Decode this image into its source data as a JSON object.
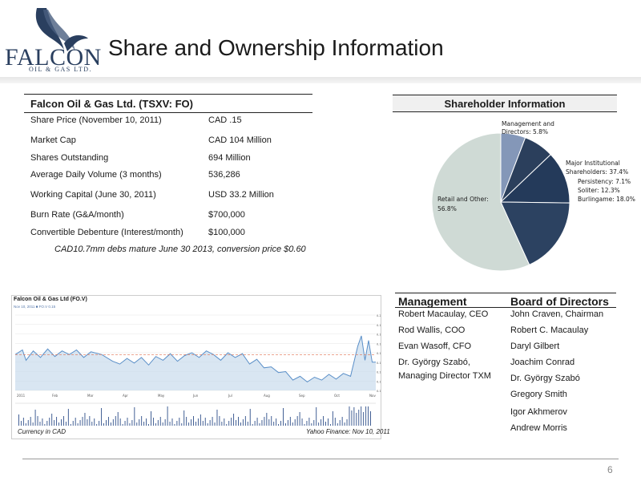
{
  "logo": {
    "word": "FALCON",
    "sub": "OIL & GAS LTD."
  },
  "title": "Share and Ownership Information",
  "table": {
    "title": "Falcon Oil & Gas Ltd. (TSXV: FO)",
    "rows": [
      {
        "label": "Share Price (November 10, 2011)",
        "value": "CAD .15"
      },
      {
        "label": "Market Cap",
        "value": "CAD 104 Million"
      },
      {
        "label": "Shares Outstanding",
        "value": "694 Million"
      },
      {
        "label": "Average Daily Volume (3 months)",
        "value": "536,286"
      },
      {
        "label": "Working Capital (June 30, 2011)",
        "value": "USD 33.2 Million"
      },
      {
        "label": "Burn Rate (G&A/month)",
        "value": "$700,000"
      },
      {
        "label": "Convertible Debenture (Interest/month)",
        "value": "$100,000"
      }
    ],
    "note": "CAD10.7mm debs mature June 30 2013, conversion price $0.60"
  },
  "chart_data": {
    "type": "pie",
    "title": "Shareholder Information",
    "slices": [
      {
        "label": "Management and Directors: 5.8%",
        "value": 5.8,
        "color": "#8497b8"
      },
      {
        "label": "Persistency: 7.1%",
        "value": 7.1,
        "color": "#2b3f5c"
      },
      {
        "label": "Soliter: 12.3%",
        "value": 12.3,
        "color": "#243a5a"
      },
      {
        "label": "Burlingame: 18.0%",
        "value": 18.0,
        "color": "#2c4261"
      },
      {
        "label": "Retail and Other: 56.8%",
        "value": 56.8,
        "color": "#cfdad5"
      }
    ],
    "group_label": "Major Institutional Shareholders: 37.4%"
  },
  "pie_labels": {
    "mgmt_1": "Management and",
    "mgmt_2": "Directors: 5.8%",
    "major_1": "Major Institutional",
    "major_2": "Shareholders: 37.4%",
    "persistency": "Persistency: 7.1%",
    "soliter": "Soliter: 12.3%",
    "burlingame": "Burlingame: 18.0%",
    "retail_1": "Retail and Other:",
    "retail_2": "56.8%"
  },
  "stock": {
    "title": "Falcon Oil & Gas Ltd (FO.V)",
    "legend": "Nov 10, 2011   ■ FO.V 0.15",
    "foot_left": "Currency in CAD",
    "foot_right": "Yahoo Finance: Nov 10, 2011",
    "month_labels": [
      "2011",
      "Feb",
      "Mar",
      "Apr",
      "May",
      "Jun",
      "Jul",
      "Aug",
      "Sep",
      "Oct",
      "Nov"
    ],
    "price_ticks": [
      "0.20",
      "0.19",
      "0.18",
      "0.17",
      "0.16",
      "0.15",
      "0.14",
      "0.13",
      "0.12"
    ],
    "colors": {
      "line": "#5a8fc8",
      "fill": "#c9dbec",
      "volume": "#2f4f8a",
      "ref": "#e07050"
    }
  },
  "management": {
    "heading": "Management",
    "items": [
      "Robert Macaulay, CEO",
      "Rod Wallis, COO",
      "Evan Wasoff, CFO",
      "Dr. György Szabó,",
      "Managing Director TXM"
    ]
  },
  "board": {
    "heading": "Board of Directors",
    "items": [
      "John Craven, Chairman",
      "Robert C. Macaulay",
      "Daryl Gilbert",
      "Joachim Conrad",
      "Dr. György Szabó",
      "Gregory Smith",
      "Igor Akhmerov",
      "Andrew Morris"
    ]
  },
  "page_number": "6"
}
